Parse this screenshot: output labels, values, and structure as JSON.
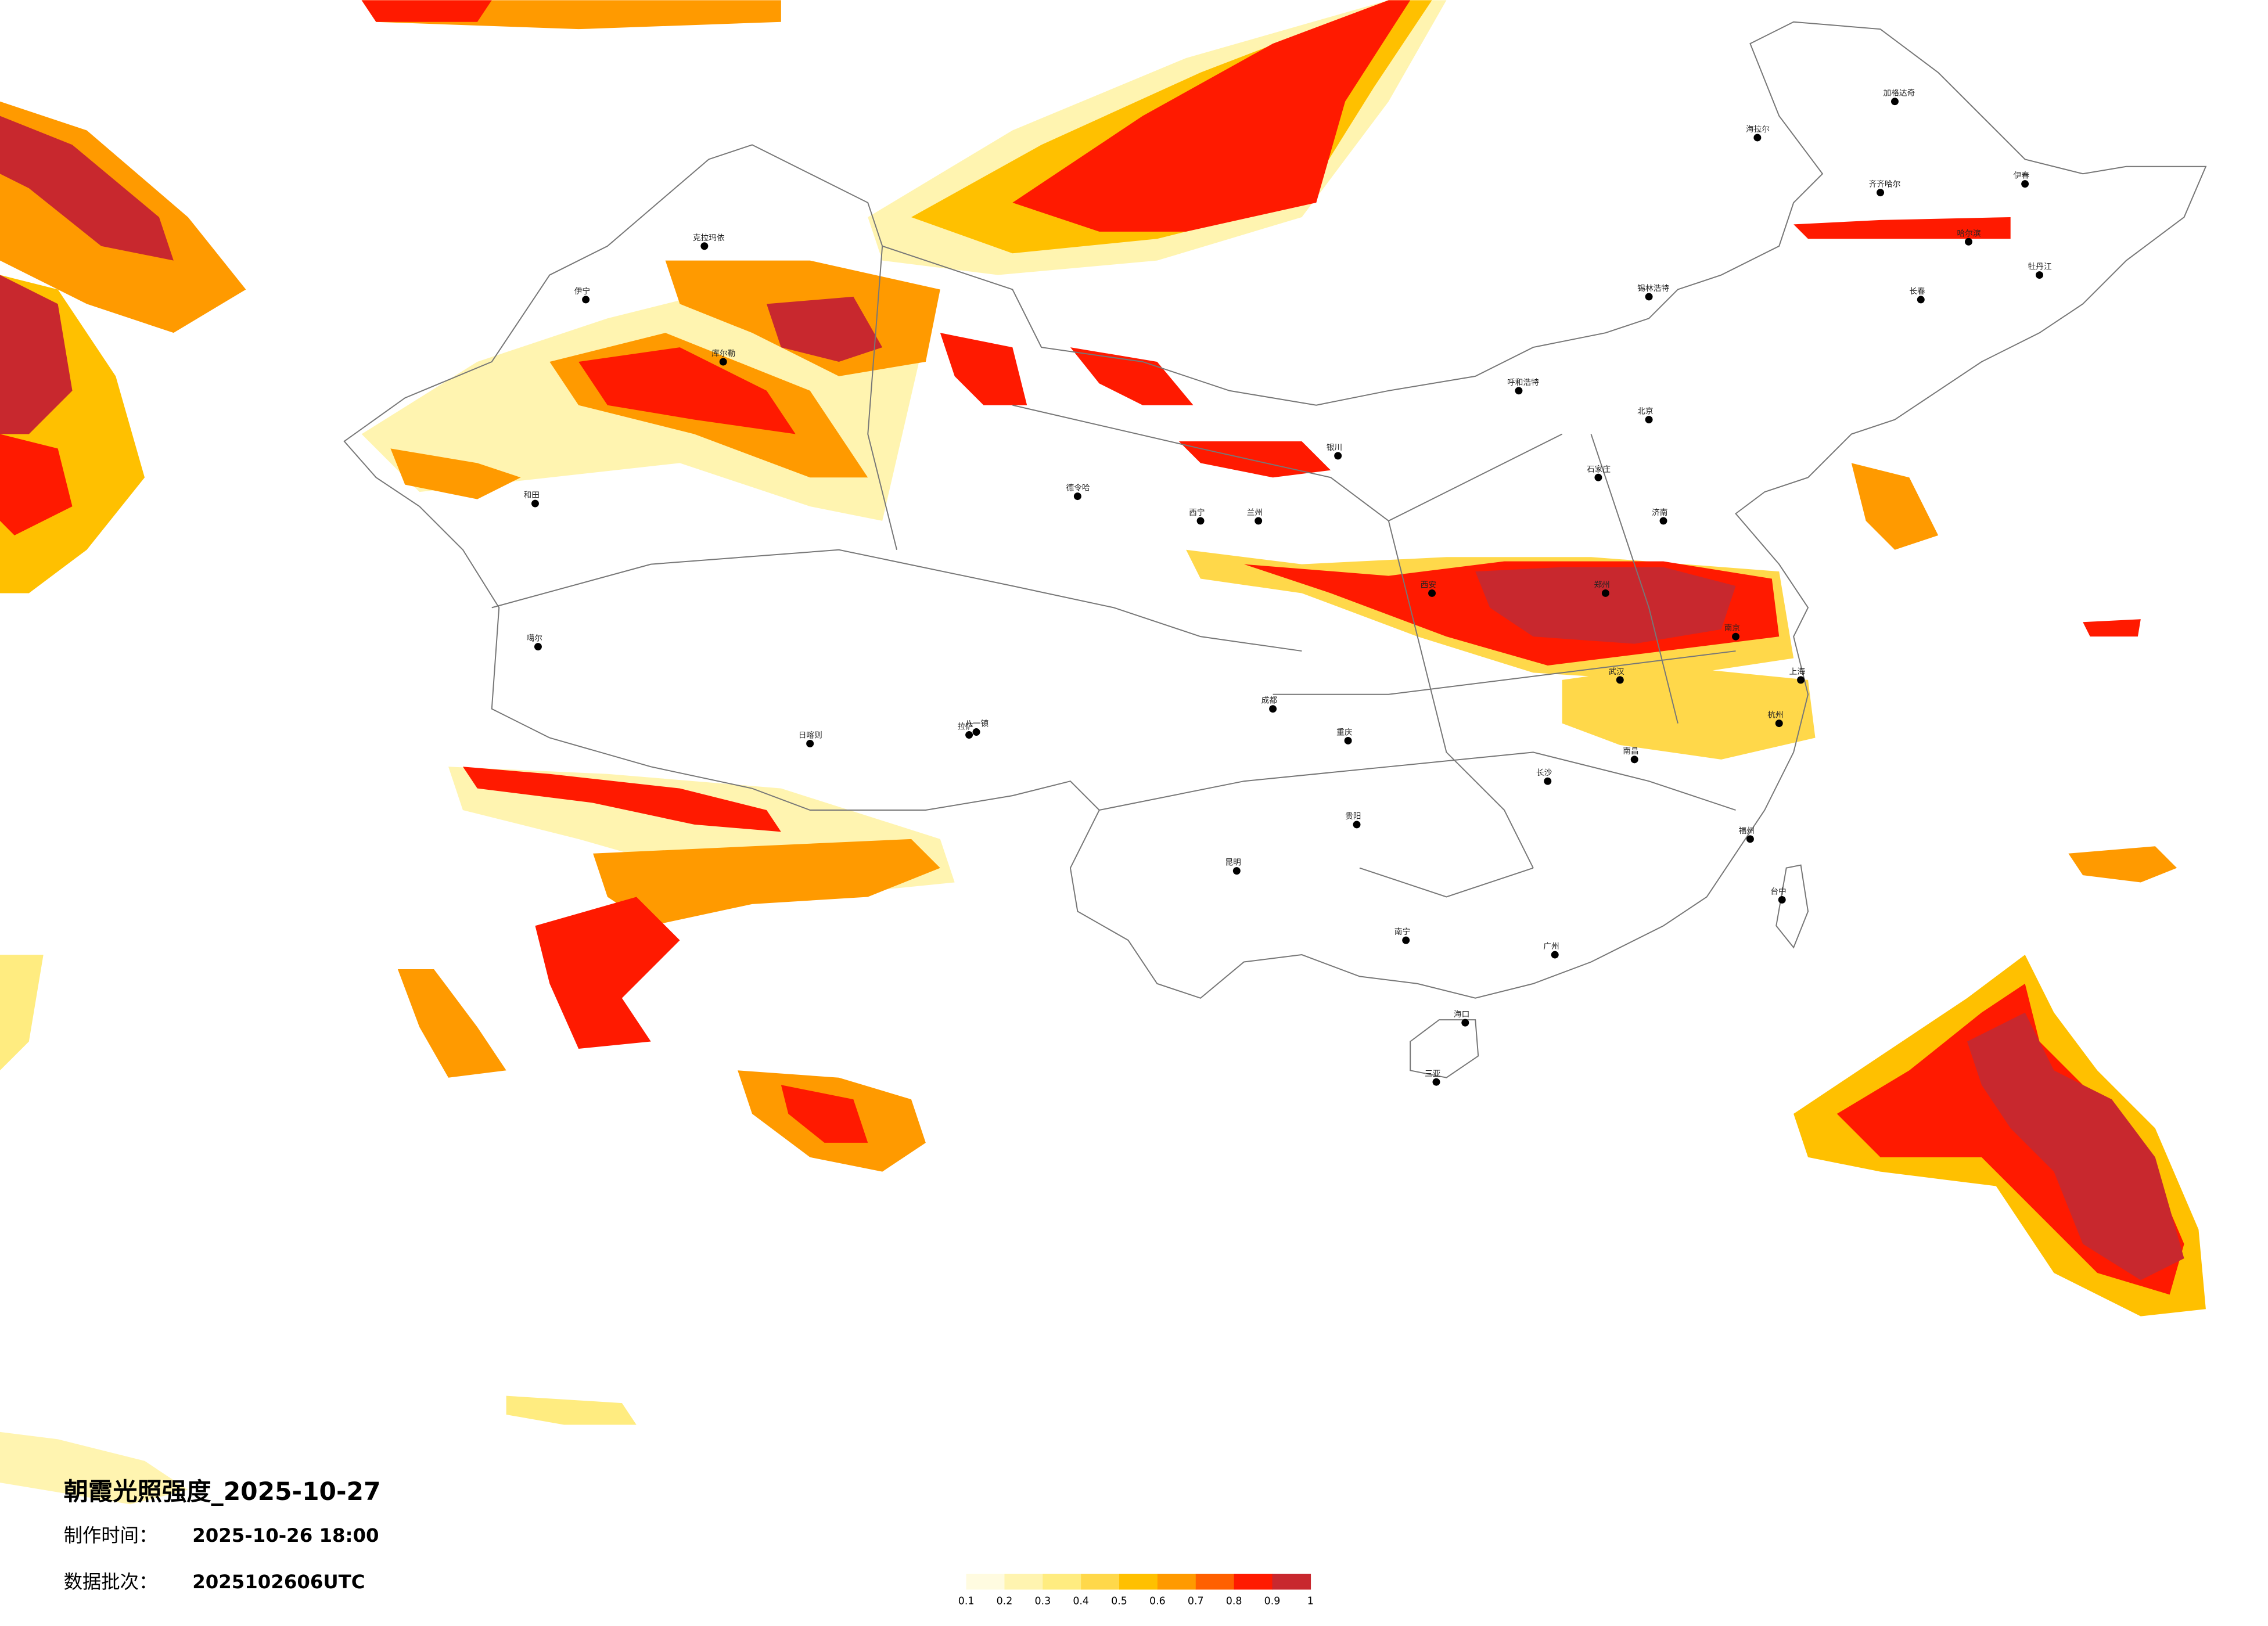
{
  "title": "朝霞光照强度_2025-10-27",
  "made_label": "制作时间：",
  "made_time": "2025-10-26 18:00",
  "batch_label": "数据批次：",
  "batch": "2025102606UTC",
  "legend": {
    "colors": [
      "#fffbe0",
      "#fff4b0",
      "#ffec80",
      "#ffd84a",
      "#ffc000",
      "#ff9a00",
      "#ff6000",
      "#ff1a00",
      "#c8282e"
    ],
    "ticks": [
      0.1,
      0.2,
      0.3,
      0.4,
      0.5,
      0.6,
      0.7,
      0.8,
      0.9,
      1
    ]
  },
  "cities": [
    "海拉尔",
    "加格达奇",
    "齐齐哈尔",
    "伊春",
    "哈尔滨",
    "牡丹江",
    "长春",
    "锡林浩特",
    "呼和浩特",
    "北京",
    "石家庄",
    "济南",
    "郑州",
    "西安",
    "南京",
    "上海",
    "杭州",
    "武汉",
    "南昌",
    "长沙",
    "福州",
    "台中",
    "广州",
    "南宁",
    "海口",
    "三亚",
    "贵阳",
    "昆明",
    "成都",
    "重庆",
    "兰州",
    "西宁",
    "银川",
    "德令哈",
    "拉萨",
    "日喀则",
    "八一镇",
    "克拉玛依",
    "伊宁",
    "库尔勒",
    "和田",
    "噶尔"
  ]
}
